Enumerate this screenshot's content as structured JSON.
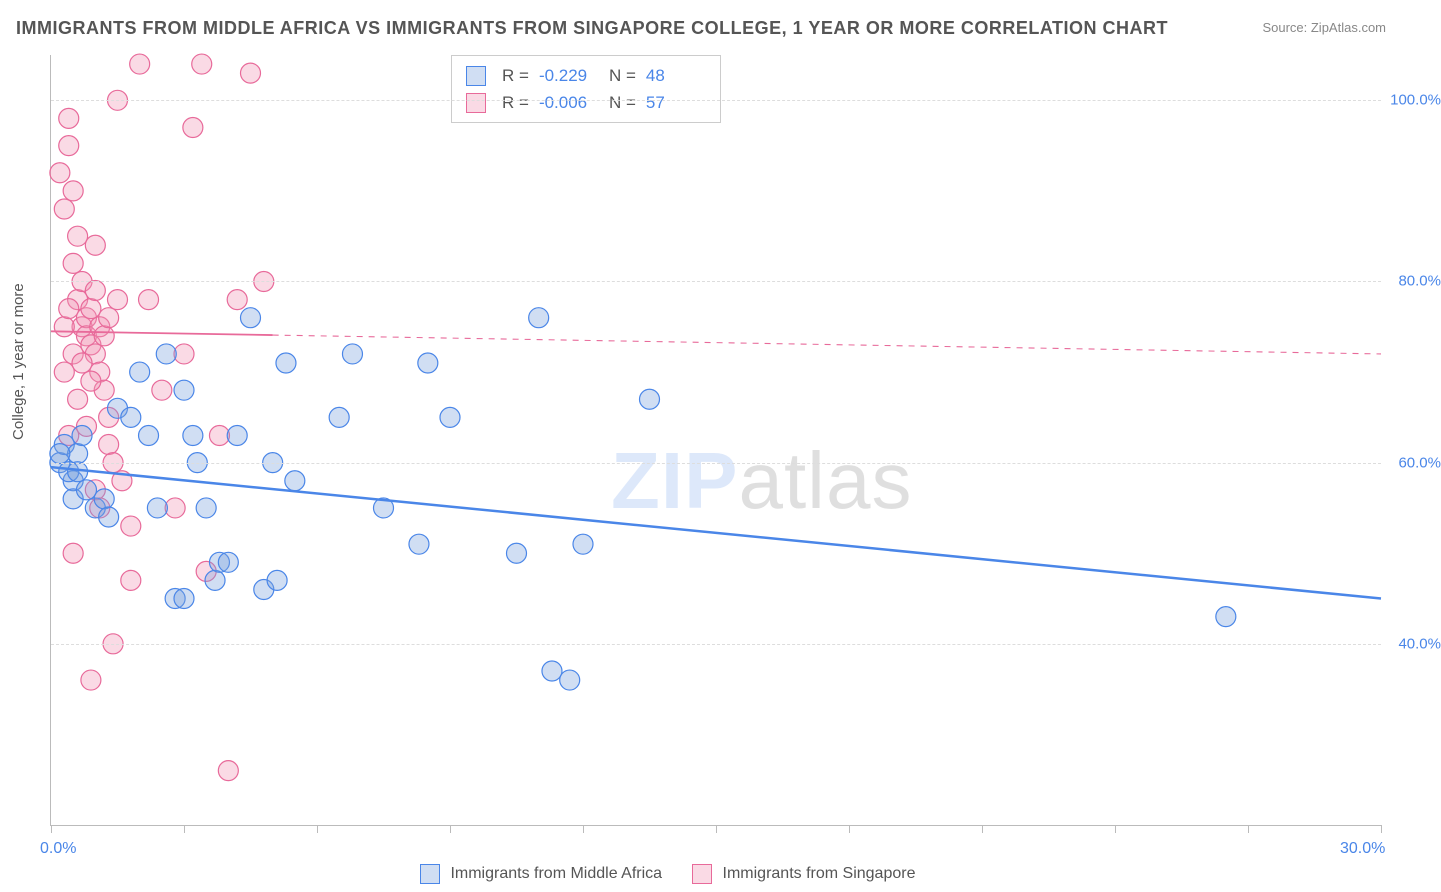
{
  "title": "IMMIGRANTS FROM MIDDLE AFRICA VS IMMIGRANTS FROM SINGAPORE COLLEGE, 1 YEAR OR MORE CORRELATION CHART",
  "source": "Source: ZipAtlas.com",
  "ylabel": "College, 1 year or more",
  "watermark_a": "ZIP",
  "watermark_b": "atlas",
  "chart": {
    "type": "scatter",
    "background": "#ffffff",
    "plot_border_color": "#bbbbbb",
    "grid_color": "#dddddd",
    "grid_dash": true,
    "x_domain": [
      0,
      30
    ],
    "y_domain": [
      20,
      105
    ],
    "x_ticks": [
      0,
      3,
      6,
      9,
      12,
      15,
      18,
      21,
      24,
      27,
      30
    ],
    "x_tick_labels": {
      "0": "0.0%",
      "30": "30.0%"
    },
    "y_ticks": [
      40,
      60,
      80,
      100
    ],
    "y_tick_labels": [
      "40.0%",
      "60.0%",
      "80.0%",
      "100.0%"
    ],
    "y_label_color": "#4a86e8",
    "x_label_color": "#4a86e8",
    "point_radius": 10,
    "point_opacity": 0.35,
    "point_stroke_width": 1.2
  },
  "series_blue": {
    "label": "Immigrants from Middle Africa",
    "fill": "rgba(120,160,220,0.35)",
    "stroke": "#4a86e8",
    "R": "-0.229",
    "N": "48",
    "trend": {
      "y_at_x0": 59.5,
      "y_at_x30": 45.0,
      "solid_until_x": 30,
      "stroke_width": 2.5
    },
    "points": [
      [
        0.2,
        60
      ],
      [
        0.3,
        62
      ],
      [
        0.5,
        58
      ],
      [
        0.6,
        61
      ],
      [
        0.4,
        59
      ],
      [
        0.7,
        63
      ],
      [
        0.5,
        56
      ],
      [
        0.8,
        57
      ],
      [
        1.0,
        55
      ],
      [
        1.2,
        56
      ],
      [
        1.3,
        54
      ],
      [
        1.5,
        66
      ],
      [
        1.8,
        65
      ],
      [
        2.0,
        70
      ],
      [
        2.2,
        63
      ],
      [
        2.4,
        55
      ],
      [
        2.6,
        72
      ],
      [
        2.8,
        45
      ],
      [
        3.0,
        68
      ],
      [
        3.2,
        63
      ],
      [
        3.3,
        60
      ],
      [
        3.5,
        55
      ],
      [
        3.7,
        47
      ],
      [
        3.8,
        49
      ],
      [
        4.0,
        49
      ],
      [
        4.2,
        63
      ],
      [
        4.5,
        76
      ],
      [
        4.8,
        46
      ],
      [
        5.0,
        60
      ],
      [
        5.1,
        47
      ],
      [
        5.3,
        71
      ],
      [
        5.5,
        58
      ],
      [
        6.5,
        65
      ],
      [
        6.8,
        72
      ],
      [
        7.5,
        55
      ],
      [
        8.3,
        51
      ],
      [
        8.5,
        71
      ],
      [
        9.0,
        65
      ],
      [
        10.5,
        50
      ],
      [
        11.0,
        76
      ],
      [
        11.3,
        37
      ],
      [
        11.7,
        36
      ],
      [
        12.0,
        51
      ],
      [
        13.5,
        67
      ],
      [
        26.5,
        43
      ],
      [
        3.0,
        45
      ],
      [
        0.2,
        61
      ],
      [
        0.6,
        59
      ]
    ]
  },
  "series_pink": {
    "label": "Immigrants from Singapore",
    "fill": "rgba(240,150,180,0.35)",
    "stroke": "#e86a9a",
    "R": "-0.006",
    "N": "57",
    "trend": {
      "y_at_x0": 74.5,
      "y_at_x30": 72.0,
      "solid_until_x": 5,
      "stroke_width": 1.8
    },
    "points": [
      [
        0.2,
        92
      ],
      [
        0.3,
        88
      ],
      [
        0.4,
        95
      ],
      [
        0.5,
        82
      ],
      [
        0.5,
        90
      ],
      [
        0.6,
        85
      ],
      [
        0.6,
        78
      ],
      [
        0.7,
        80
      ],
      [
        0.7,
        75
      ],
      [
        0.8,
        76
      ],
      [
        0.8,
        74
      ],
      [
        0.9,
        73
      ],
      [
        0.9,
        77
      ],
      [
        1.0,
        72
      ],
      [
        1.0,
        79
      ],
      [
        1.0,
        84
      ],
      [
        1.1,
        75
      ],
      [
        1.1,
        70
      ],
      [
        1.2,
        74
      ],
      [
        1.2,
        68
      ],
      [
        1.3,
        65
      ],
      [
        1.3,
        62
      ],
      [
        1.4,
        60
      ],
      [
        1.5,
        78
      ],
      [
        1.5,
        100
      ],
      [
        1.6,
        58
      ],
      [
        1.8,
        53
      ],
      [
        1.8,
        47
      ],
      [
        2.0,
        104
      ],
      [
        2.2,
        78
      ],
      [
        2.5,
        68
      ],
      [
        2.8,
        55
      ],
      [
        3.0,
        72
      ],
      [
        3.2,
        97
      ],
      [
        3.4,
        104
      ],
      [
        3.5,
        48
      ],
      [
        3.8,
        63
      ],
      [
        4.0,
        26
      ],
      [
        4.2,
        78
      ],
      [
        4.5,
        103
      ],
      [
        4.8,
        80
      ],
      [
        1.4,
        40
      ],
      [
        0.9,
        36
      ],
      [
        0.5,
        50
      ],
      [
        0.4,
        98
      ],
      [
        0.3,
        70
      ],
      [
        0.6,
        67
      ],
      [
        0.4,
        63
      ],
      [
        0.8,
        64
      ],
      [
        1.0,
        57
      ],
      [
        1.1,
        55
      ],
      [
        0.3,
        75
      ],
      [
        0.4,
        77
      ],
      [
        0.5,
        72
      ],
      [
        0.7,
        71
      ],
      [
        0.9,
        69
      ],
      [
        1.3,
        76
      ]
    ]
  },
  "legend_box": {
    "R_label": "R =",
    "N_label": "N ="
  }
}
